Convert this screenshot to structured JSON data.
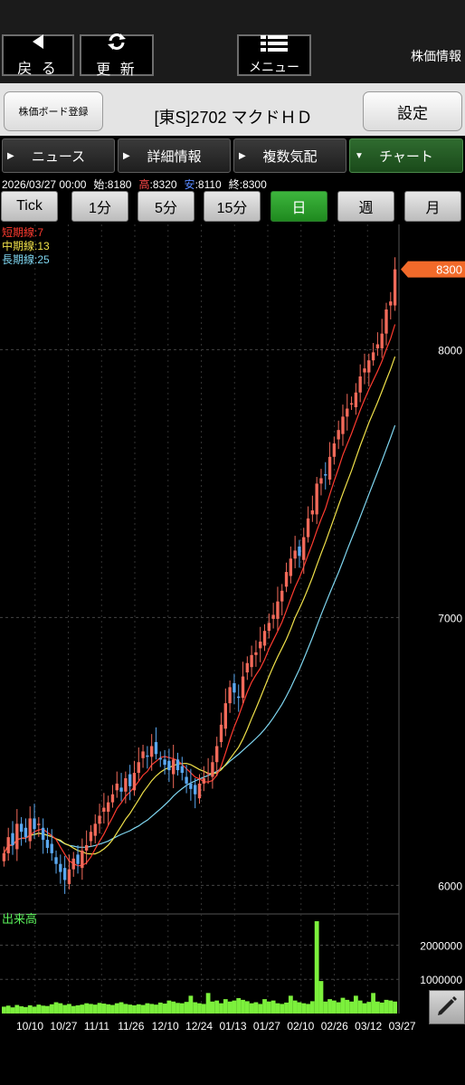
{
  "toolbar": {
    "back_label": "戻 る",
    "refresh_label": "更 新",
    "menu_label": "メニュー",
    "app_title": "株価情報"
  },
  "header": {
    "board_button": "株価ボード登録",
    "stock_name": "[東S]2702 マクドＨＤ",
    "settings_button": "設定"
  },
  "tabs": [
    {
      "label": "ニュース",
      "active": false
    },
    {
      "label": "詳細情報",
      "active": false
    },
    {
      "label": "複数気配",
      "active": false
    },
    {
      "label": "チャート",
      "active": true
    }
  ],
  "ohlc": {
    "datetime": "2026/03/27 00:00",
    "open_label": "始",
    "open": "8180",
    "high_label": "高",
    "high": "8320",
    "low_label": "安",
    "low": "8110",
    "close_label": "終",
    "close": "8300"
  },
  "periods": [
    {
      "label": "Tick",
      "active": false
    },
    {
      "label": "1分",
      "active": false
    },
    {
      "label": "5分",
      "active": false
    },
    {
      "label": "15分",
      "active": false
    },
    {
      "label": "日",
      "active": true
    },
    {
      "label": "週",
      "active": false
    },
    {
      "label": "月",
      "active": false
    }
  ],
  "legend": {
    "short": "短期線:7",
    "mid": "中期線:13",
    "long": "長期線:25"
  },
  "price_tag": "8300",
  "volume_title": "出来高",
  "colors": {
    "up": "#f26a5a",
    "down": "#5aa8f0",
    "ma_short": "#ff3b2f",
    "ma_mid": "#f0e14a",
    "ma_long": "#7fd6f0",
    "volume": "#7cf03c",
    "price_tag_bg": "#f26a2a",
    "active_green": "#2a9a2a"
  },
  "chart_data": {
    "type": "candlestick",
    "y_ticks": [
      6000,
      7000,
      8000
    ],
    "ylim": [
      5900,
      8400
    ],
    "volume_ticks": [
      1000000,
      2000000
    ],
    "volume_ylim": [
      0,
      2700000
    ],
    "x_tick_labels": [
      "10/10",
      "10/27",
      "11/11",
      "11/26",
      "12/10",
      "12/24",
      "01/13",
      "01/27",
      "02/10",
      "02/26",
      "03/12",
      "03/27"
    ],
    "last_close": 8300,
    "series": [
      {
        "name": "短期線:7"
      },
      {
        "name": "中期線:13"
      },
      {
        "name": "長期線:25"
      }
    ],
    "close": [
      6120,
      6180,
      6150,
      6230,
      6200,
      6180,
      6250,
      6210,
      6230,
      6170,
      6140,
      6120,
      6080,
      6050,
      6020,
      6060,
      6100,
      6080,
      6130,
      6150,
      6200,
      6230,
      6260,
      6290,
      6310,
      6340,
      6380,
      6350,
      6400,
      6370,
      6420,
      6460,
      6500,
      6480,
      6520,
      6490,
      6470,
      6450,
      6430,
      6470,
      6430,
      6420,
      6380,
      6360,
      6340,
      6380,
      6400,
      6420,
      6460,
      6520,
      6600,
      6680,
      6740,
      6720,
      6700,
      6780,
      6830,
      6860,
      6870,
      6910,
      6950,
      6980,
      7010,
      7060,
      7100,
      7170,
      7220,
      7250,
      7230,
      7300,
      7370,
      7400,
      7500,
      7520,
      7530,
      7600,
      7650,
      7700,
      7750,
      7780,
      7800,
      7840,
      7900,
      7930,
      7960,
      7990,
      8020,
      8060,
      8150,
      8180,
      8300
    ],
    "volume": [
      200000,
      230000,
      180000,
      250000,
      210000,
      190000,
      240000,
      200000,
      260000,
      230000,
      220000,
      270000,
      330000,
      300000,
      250000,
      280000,
      220000,
      240000,
      260000,
      300000,
      280000,
      260000,
      310000,
      290000,
      270000,
      250000,
      300000,
      330000,
      280000,
      260000,
      240000,
      270000,
      250000,
      300000,
      280000,
      260000,
      320000,
      290000,
      380000,
      350000,
      310000,
      300000,
      340000,
      520000,
      330000,
      300000,
      280000,
      600000,
      350000,
      380000,
      300000,
      420000,
      350000,
      380000,
      450000,
      400000,
      360000,
      300000,
      330000,
      280000,
      420000,
      350000,
      380000,
      300000,
      280000,
      320000,
      520000,
      380000,
      330000,
      300000,
      280000,
      360000,
      2700000,
      950000,
      350000,
      420000,
      380000,
      330000,
      460000,
      400000,
      350000,
      520000,
      380000,
      300000,
      340000,
      600000,
      350000,
      320000,
      400000,
      380000,
      350000
    ]
  }
}
